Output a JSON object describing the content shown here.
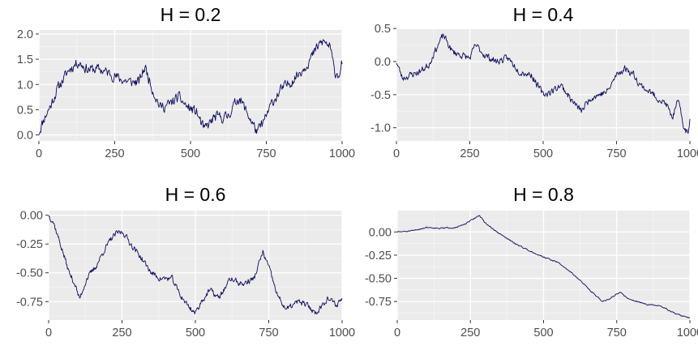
{
  "colors": {
    "panel_bg": "#ebebeb",
    "grid_major": "#ffffff",
    "grid_minor": "#f5f5f5",
    "line": "#0b0b5e",
    "tick_text": "#4d4d4d"
  },
  "chart_data": [
    {
      "type": "line",
      "title": "H = 0.2",
      "xlabel": "",
      "ylabel": "",
      "xlim": [
        0,
        1000
      ],
      "ylim": [
        -0.12,
        2.08
      ],
      "xticks": [
        0,
        250,
        500,
        750,
        1000
      ],
      "xtick_labels": [
        "0",
        "250",
        "500",
        "750",
        "1000"
      ],
      "yticks": [
        0,
        0.5,
        1,
        1.5,
        2
      ],
      "ytick_labels": [
        "0.0",
        "0.5",
        "1.0",
        "1.5",
        "2.0"
      ],
      "grid": true,
      "series": [
        {
          "key_points": [
            [
              0,
              0.05
            ],
            [
              15,
              0.3
            ],
            [
              40,
              0.6
            ],
            [
              60,
              0.9
            ],
            [
              80,
              1.1
            ],
            [
              100,
              1.3
            ],
            [
              130,
              1.45
            ],
            [
              160,
              1.3
            ],
            [
              200,
              1.3
            ],
            [
              240,
              1.2
            ],
            [
              270,
              1.1
            ],
            [
              300,
              1.05
            ],
            [
              330,
              1.05
            ],
            [
              350,
              1.35
            ],
            [
              375,
              0.9
            ],
            [
              400,
              0.55
            ],
            [
              430,
              0.6
            ],
            [
              460,
              0.75
            ],
            [
              490,
              0.55
            ],
            [
              520,
              0.45
            ],
            [
              545,
              0.1
            ],
            [
              580,
              0.35
            ],
            [
              620,
              0.35
            ],
            [
              660,
              0.75
            ],
            [
              690,
              0.4
            ],
            [
              720,
              0.05
            ],
            [
              745,
              0.3
            ],
            [
              770,
              0.65
            ],
            [
              800,
              0.9
            ],
            [
              830,
              1.05
            ],
            [
              870,
              1.3
            ],
            [
              900,
              1.55
            ],
            [
              925,
              1.8
            ],
            [
              940,
              1.85
            ],
            [
              960,
              1.75
            ],
            [
              975,
              1.25
            ],
            [
              990,
              1.2
            ],
            [
              1000,
              1.45
            ]
          ],
          "noise": 0.09,
          "seed": 11
        }
      ]
    },
    {
      "type": "line",
      "title": "H = 0.4",
      "xlabel": "",
      "ylabel": "",
      "xlim": [
        0,
        1000
      ],
      "ylim": [
        -1.2,
        0.49
      ],
      "xticks": [
        0,
        250,
        500,
        750,
        1000
      ],
      "xtick_labels": [
        "0",
        "250",
        "500",
        "750",
        "1000"
      ],
      "yticks": [
        -1,
        -0.5,
        0,
        0.5
      ],
      "ytick_labels": [
        "-1.0",
        "-0.5",
        "0.0",
        "0.5"
      ],
      "grid": true,
      "series": [
        {
          "key_points": [
            [
              0,
              0
            ],
            [
              20,
              -0.25
            ],
            [
              50,
              -0.2
            ],
            [
              80,
              -0.15
            ],
            [
              110,
              -0.05
            ],
            [
              130,
              0.15
            ],
            [
              160,
              0.4
            ],
            [
              190,
              0.15
            ],
            [
              220,
              0.1
            ],
            [
              250,
              0.05
            ],
            [
              270,
              0.25
            ],
            [
              300,
              0.1
            ],
            [
              340,
              0
            ],
            [
              380,
              0.05
            ],
            [
              420,
              -0.15
            ],
            [
              460,
              -0.2
            ],
            [
              500,
              -0.5
            ],
            [
              530,
              -0.45
            ],
            [
              560,
              -0.35
            ],
            [
              600,
              -0.6
            ],
            [
              630,
              -0.75
            ],
            [
              660,
              -0.55
            ],
            [
              690,
              -0.5
            ],
            [
              720,
              -0.45
            ],
            [
              750,
              -0.2
            ],
            [
              780,
              -0.1
            ],
            [
              810,
              -0.2
            ],
            [
              830,
              -0.35
            ],
            [
              860,
              -0.45
            ],
            [
              890,
              -0.55
            ],
            [
              920,
              -0.65
            ],
            [
              940,
              -0.85
            ],
            [
              960,
              -0.6
            ],
            [
              980,
              -1.0
            ],
            [
              995,
              -1.1
            ],
            [
              1000,
              -0.85
            ]
          ],
          "noise": 0.045,
          "seed": 23
        }
      ]
    },
    {
      "type": "line",
      "title": "H = 0.6",
      "xlabel": "",
      "ylabel": "",
      "xlim": [
        0,
        1000
      ],
      "ylim": [
        -0.91,
        0.04
      ],
      "xticks": [
        0,
        250,
        500,
        750,
        1000
      ],
      "xtick_labels": [
        "0",
        "250",
        "500",
        "750",
        "1000"
      ],
      "yticks": [
        0,
        -0.25,
        -0.5,
        -0.75
      ],
      "ytick_labels": [
        "0.00",
        "-0.25",
        "-0.50",
        "-0.75"
      ],
      "grid": true,
      "series": [
        {
          "key_points": [
            [
              0,
              0
            ],
            [
              15,
              -0.05
            ],
            [
              40,
              -0.25
            ],
            [
              70,
              -0.5
            ],
            [
              90,
              -0.6
            ],
            [
              105,
              -0.73
            ],
            [
              130,
              -0.55
            ],
            [
              160,
              -0.45
            ],
            [
              190,
              -0.3
            ],
            [
              215,
              -0.2
            ],
            [
              235,
              -0.15
            ],
            [
              255,
              -0.15
            ],
            [
              280,
              -0.25
            ],
            [
              310,
              -0.35
            ],
            [
              350,
              -0.5
            ],
            [
              380,
              -0.55
            ],
            [
              420,
              -0.55
            ],
            [
              450,
              -0.7
            ],
            [
              480,
              -0.8
            ],
            [
              500,
              -0.85
            ],
            [
              520,
              -0.75
            ],
            [
              550,
              -0.65
            ],
            [
              580,
              -0.72
            ],
            [
              620,
              -0.55
            ],
            [
              660,
              -0.6
            ],
            [
              700,
              -0.55
            ],
            [
              730,
              -0.32
            ],
            [
              750,
              -0.45
            ],
            [
              780,
              -0.7
            ],
            [
              810,
              -0.82
            ],
            [
              850,
              -0.75
            ],
            [
              880,
              -0.78
            ],
            [
              910,
              -0.85
            ],
            [
              950,
              -0.72
            ],
            [
              980,
              -0.78
            ],
            [
              1000,
              -0.72
            ]
          ],
          "noise": 0.022,
          "seed": 37
        }
      ]
    },
    {
      "type": "line",
      "title": "H = 0.8",
      "xlabel": "",
      "ylabel": "",
      "xlim": [
        0,
        1000
      ],
      "ylim": [
        -0.95,
        0.23
      ],
      "xticks": [
        0,
        250,
        500,
        750,
        1000
      ],
      "xtick_labels": [
        "0",
        "250",
        "500",
        "750",
        "1000"
      ],
      "yticks": [
        0,
        -0.25,
        -0.5,
        -0.75
      ],
      "ytick_labels": [
        "0.00",
        "-0.25",
        "-0.50",
        "-0.75"
      ],
      "grid": true,
      "series": [
        {
          "key_points": [
            [
              0,
              0
            ],
            [
              50,
              0.01
            ],
            [
              100,
              0.05
            ],
            [
              150,
              0.04
            ],
            [
              200,
              0.05
            ],
            [
              230,
              0.08
            ],
            [
              260,
              0.14
            ],
            [
              280,
              0.18
            ],
            [
              300,
              0.1
            ],
            [
              340,
              0
            ],
            [
              400,
              -0.12
            ],
            [
              450,
              -0.2
            ],
            [
              500,
              -0.27
            ],
            [
              550,
              -0.33
            ],
            [
              600,
              -0.45
            ],
            [
              650,
              -0.6
            ],
            [
              700,
              -0.75
            ],
            [
              720,
              -0.73
            ],
            [
              760,
              -0.65
            ],
            [
              790,
              -0.72
            ],
            [
              850,
              -0.78
            ],
            [
              900,
              -0.8
            ],
            [
              950,
              -0.88
            ],
            [
              1000,
              -0.93
            ]
          ],
          "noise": 0.006,
          "seed": 51
        }
      ]
    }
  ],
  "layout_panels": [
    "h02",
    "h04",
    "h06",
    "h08"
  ]
}
